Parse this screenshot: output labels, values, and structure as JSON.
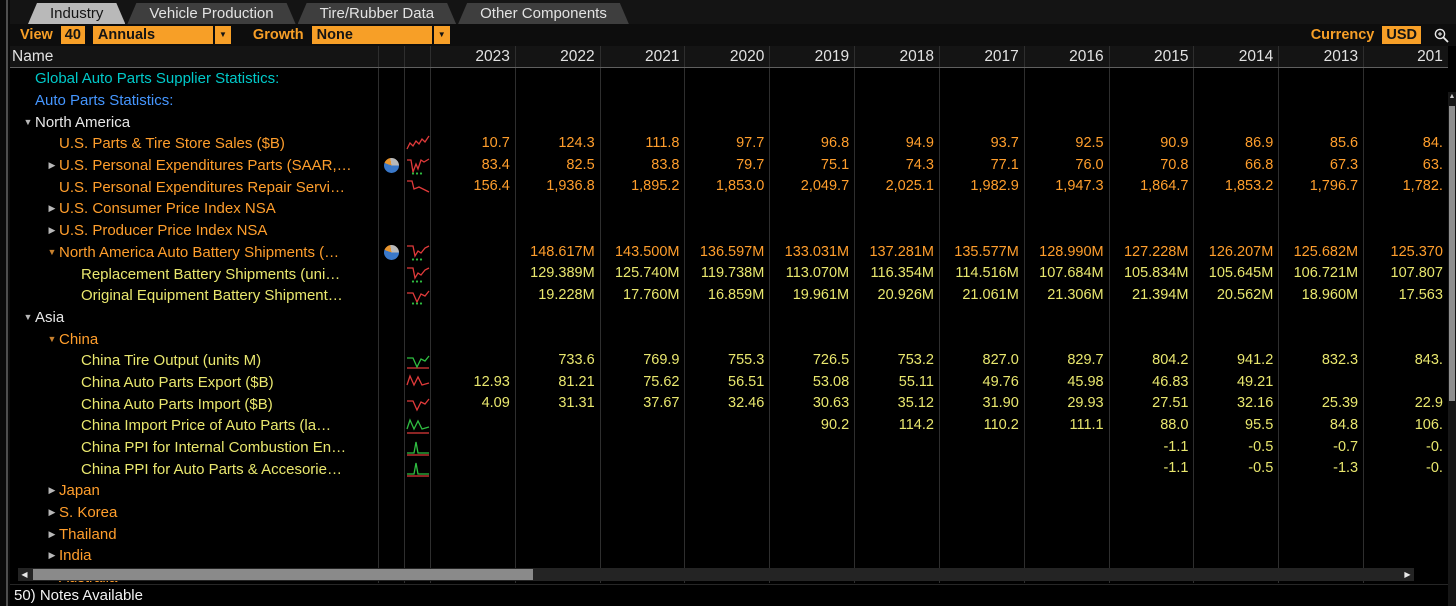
{
  "palette": {
    "orange": "#ff9e2c",
    "yellow": "#e9e76e",
    "teal": "#00c9c9",
    "blue": "#4596ff",
    "white": "#e8e8e8",
    "marker_gray": "#b8b8b8",
    "marker_orange": "#c8812e",
    "spark_red": "#e03a3a",
    "spark_green": "#2fbe41",
    "accent": "#f79f27"
  },
  "tabs": [
    {
      "label": "Industry",
      "active": true
    },
    {
      "label": "Vehicle Production",
      "active": false
    },
    {
      "label": "Tire/Rubber Data",
      "active": false
    },
    {
      "label": "Other Components",
      "active": false
    }
  ],
  "toolbar": {
    "view_label": "View",
    "view_count": "40",
    "period_value": "Annuals",
    "growth_label": "Growth",
    "growth_value": "None",
    "currency_label": "Currency",
    "currency_value": "USD",
    "dropdown_arrow": "▼",
    "search_icon": "magnifier-icon"
  },
  "table": {
    "name_header": "Name",
    "years": [
      "2023",
      "2022",
      "2021",
      "2020",
      "2019",
      "2018",
      "2017",
      "2016",
      "2015",
      "2014",
      "2013",
      "201"
    ],
    "rows": [
      {
        "name": "Global Auto Parts Supplier Statistics:",
        "color": "teal",
        "level": 0,
        "marker": null,
        "pie": false,
        "spark": null,
        "values": null
      },
      {
        "name": "Auto Parts Statistics:",
        "color": "blue",
        "level": 0,
        "marker": null,
        "pie": false,
        "spark": null,
        "values": null
      },
      {
        "name": "North America",
        "color": "white",
        "level": 0,
        "marker": "down",
        "marker_color": "marker_gray",
        "pie": false,
        "spark": null,
        "values": null
      },
      {
        "name": "U.S. Parts & Tire Store Sales ($B)",
        "color": "orange",
        "level": 1,
        "marker": null,
        "pie": false,
        "spark": [
          {
            "shape": "jag",
            "color": "spark_red"
          }
        ],
        "values": [
          "10.7",
          "124.3",
          "111.8",
          "97.7",
          "96.8",
          "94.9",
          "93.7",
          "92.5",
          "90.9",
          "86.9",
          "85.6",
          "84."
        ]
      },
      {
        "name": "U.S. Personal Expenditures Parts (SAAR,…",
        "color": "orange",
        "level": 1,
        "marker": "right",
        "marker_color": "marker_gray",
        "pie": true,
        "spark": [
          {
            "shape": "w",
            "color": "spark_red"
          },
          {
            "shape": "dots",
            "color": "spark_green"
          }
        ],
        "values": [
          "83.4",
          "82.5",
          "83.8",
          "79.7",
          "75.1",
          "74.3",
          "77.1",
          "76.0",
          "70.8",
          "66.8",
          "67.3",
          "63."
        ]
      },
      {
        "name": "U.S. Personal Expenditures Repair Servi…",
        "color": "orange",
        "level": 1,
        "marker": null,
        "pie": false,
        "spark": [
          {
            "shape": "decl",
            "color": "spark_red"
          }
        ],
        "values": [
          "156.4",
          "1,936.8",
          "1,895.2",
          "1,853.0",
          "2,049.7",
          "2,025.1",
          "1,982.9",
          "1,947.3",
          "1,864.7",
          "1,853.2",
          "1,796.7",
          "1,782."
        ]
      },
      {
        "name": "U.S. Consumer Price Index NSA",
        "color": "orange",
        "level": 1,
        "marker": "right",
        "marker_color": "marker_gray",
        "pie": false,
        "spark": null,
        "values": null
      },
      {
        "name": "U.S. Producer Price Index NSA",
        "color": "orange",
        "level": 1,
        "marker": "right",
        "marker_color": "marker_gray",
        "pie": false,
        "spark": null,
        "values": null
      },
      {
        "name": "North America Auto Battery Shipments (…",
        "color": "orange",
        "level": 1,
        "marker": "down",
        "marker_color": "marker_orange",
        "pie": true,
        "spark": [
          {
            "shape": "dip",
            "color": "spark_red"
          },
          {
            "shape": "dots",
            "color": "spark_green"
          }
        ],
        "values": [
          "",
          "148.617M",
          "143.500M",
          "136.597M",
          "133.031M",
          "137.281M",
          "135.577M",
          "128.990M",
          "127.228M",
          "126.207M",
          "125.682M",
          "125.370"
        ]
      },
      {
        "name": "Replacement Battery Shipments (uni…",
        "color": "yellow",
        "level": 2,
        "marker": null,
        "pie": false,
        "spark": [
          {
            "shape": "dip",
            "color": "spark_red"
          },
          {
            "shape": "dots",
            "color": "spark_green"
          }
        ],
        "values": [
          "",
          "129.389M",
          "125.740M",
          "119.738M",
          "113.070M",
          "116.354M",
          "114.516M",
          "107.684M",
          "105.834M",
          "105.645M",
          "106.721M",
          "107.807"
        ]
      },
      {
        "name": "Original Equipment Battery Shipment…",
        "color": "yellow",
        "level": 2,
        "marker": null,
        "pie": false,
        "spark": [
          {
            "shape": "v",
            "color": "spark_red"
          },
          {
            "shape": "dots",
            "color": "spark_green"
          }
        ],
        "values": [
          "",
          "19.228M",
          "17.760M",
          "16.859M",
          "19.961M",
          "20.926M",
          "21.061M",
          "21.306M",
          "21.394M",
          "20.562M",
          "18.960M",
          "17.563"
        ]
      },
      {
        "name": "Asia",
        "color": "white",
        "level": 0,
        "marker": "down",
        "marker_color": "marker_gray",
        "pie": false,
        "spark": null,
        "values": null
      },
      {
        "name": "China",
        "color": "orange",
        "level": 1,
        "marker": "down",
        "marker_color": "marker_orange",
        "pie": false,
        "spark": null,
        "values": null
      },
      {
        "name": "China Tire Output (units M)",
        "color": "yellow",
        "level": 2,
        "marker": null,
        "pie": false,
        "spark": [
          {
            "shape": "base",
            "color": "spark_red"
          },
          {
            "shape": "v",
            "color": "spark_green"
          }
        ],
        "values": [
          "",
          "733.6",
          "769.9",
          "755.3",
          "726.5",
          "753.2",
          "827.0",
          "829.7",
          "804.2",
          "941.2",
          "832.3",
          "843."
        ]
      },
      {
        "name": "China Auto Parts Export ($B)",
        "color": "yellow",
        "level": 2,
        "marker": null,
        "pie": false,
        "spark": [
          {
            "shape": "m",
            "color": "spark_red"
          }
        ],
        "values": [
          "12.93",
          "81.21",
          "75.62",
          "56.51",
          "53.08",
          "55.11",
          "49.76",
          "45.98",
          "46.83",
          "49.21",
          "",
          ""
        ]
      },
      {
        "name": "China Auto Parts Import ($B)",
        "color": "yellow",
        "level": 2,
        "marker": null,
        "pie": false,
        "spark": [
          {
            "shape": "v",
            "color": "spark_red"
          }
        ],
        "values": [
          "4.09",
          "31.31",
          "37.67",
          "32.46",
          "30.63",
          "35.12",
          "31.90",
          "29.93",
          "27.51",
          "32.16",
          "25.39",
          "22.9"
        ]
      },
      {
        "name": "China Import Price of Auto Parts (la…",
        "color": "yellow",
        "level": 2,
        "marker": null,
        "pie": false,
        "spark": [
          {
            "shape": "base",
            "color": "spark_red"
          },
          {
            "shape": "m",
            "color": "spark_green"
          }
        ],
        "values": [
          "",
          "",
          "",
          "",
          "90.2",
          "114.2",
          "110.2",
          "111.1",
          "88.0",
          "95.5",
          "84.8",
          "106."
        ]
      },
      {
        "name": "China PPI for Internal Combustion En…",
        "color": "yellow",
        "level": 2,
        "marker": null,
        "pie": false,
        "spark": [
          {
            "shape": "base",
            "color": "spark_red"
          },
          {
            "shape": "spike",
            "color": "spark_green"
          }
        ],
        "values": [
          "",
          "",
          "",
          "",
          "",
          "",
          "",
          "",
          "-1.1",
          "-0.5",
          "-0.7",
          "-0."
        ]
      },
      {
        "name": "China PPI for Auto Parts & Accesorie…",
        "color": "yellow",
        "level": 2,
        "marker": null,
        "pie": false,
        "spark": [
          {
            "shape": "base",
            "color": "spark_red"
          },
          {
            "shape": "spike",
            "color": "spark_green"
          }
        ],
        "values": [
          "",
          "",
          "",
          "",
          "",
          "",
          "",
          "",
          "-1.1",
          "-0.5",
          "-1.3",
          "-0."
        ]
      },
      {
        "name": "Japan",
        "color": "orange",
        "level": 1,
        "marker": "right",
        "marker_color": "marker_gray",
        "pie": false,
        "spark": null,
        "values": null
      },
      {
        "name": "S. Korea",
        "color": "orange",
        "level": 1,
        "marker": "right",
        "marker_color": "marker_gray",
        "pie": false,
        "spark": null,
        "values": null
      },
      {
        "name": "Thailand",
        "color": "orange",
        "level": 1,
        "marker": "right",
        "marker_color": "marker_gray",
        "pie": false,
        "spark": null,
        "values": null
      },
      {
        "name": "India",
        "color": "orange",
        "level": 1,
        "marker": "right",
        "marker_color": "marker_gray",
        "pie": false,
        "spark": null,
        "values": null
      },
      {
        "name": "Australia",
        "color": "orange",
        "level": 1,
        "marker": "right",
        "marker_color": "marker_gray",
        "pie": false,
        "spark": null,
        "values": null
      }
    ]
  },
  "statusbar": {
    "label": "50) Notes Available"
  }
}
